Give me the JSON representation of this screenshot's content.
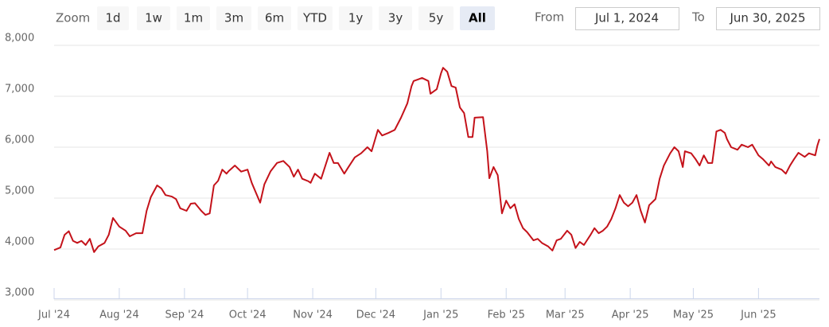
{
  "range_selector": {
    "zoom_label": "Zoom",
    "buttons": [
      "1d",
      "1w",
      "1m",
      "3m",
      "6m",
      "YTD",
      "1y",
      "3y",
      "5y",
      "All"
    ],
    "selected": "All",
    "from_label": "From",
    "from": "Jul 1, 2024",
    "to_label": "To",
    "to": "Jun 30, 2025"
  },
  "chart_data": {
    "type": "line",
    "grid": true,
    "x": [
      "2024-07-01",
      "2024-07-04",
      "2024-07-06",
      "2024-07-08",
      "2024-07-10",
      "2024-07-12",
      "2024-07-14",
      "2024-07-16",
      "2024-07-18",
      "2024-07-20",
      "2024-07-22",
      "2024-07-25",
      "2024-07-27",
      "2024-07-29",
      "2024-08-01",
      "2024-08-04",
      "2024-08-06",
      "2024-08-09",
      "2024-08-12",
      "2024-08-14",
      "2024-08-16",
      "2024-08-19",
      "2024-08-21",
      "2024-08-23",
      "2024-08-26",
      "2024-08-28",
      "2024-08-30",
      "2024-09-02",
      "2024-09-04",
      "2024-09-06",
      "2024-09-09",
      "2024-09-11",
      "2024-09-13",
      "2024-09-15",
      "2024-09-17",
      "2024-09-19",
      "2024-09-21",
      "2024-09-22",
      "2024-09-25",
      "2024-09-28",
      "2024-10-01",
      "2024-10-03",
      "2024-10-07",
      "2024-10-09",
      "2024-10-12",
      "2024-10-15",
      "2024-10-18",
      "2024-10-21",
      "2024-10-23",
      "2024-10-25",
      "2024-10-27",
      "2024-10-30",
      "2024-10-31",
      "2024-11-02",
      "2024-11-05",
      "2024-11-09",
      "2024-11-11",
      "2024-11-13",
      "2024-11-16",
      "2024-11-18",
      "2024-11-21",
      "2024-11-24",
      "2024-11-27",
      "2024-11-29",
      "2024-12-02",
      "2024-12-04",
      "2024-12-07",
      "2024-12-10",
      "2024-12-13",
      "2024-12-16",
      "2024-12-18",
      "2024-12-19",
      "2024-12-21",
      "2024-12-23",
      "2024-12-26",
      "2024-12-27",
      "2024-12-30",
      "2025-01-01",
      "2025-01-02",
      "2025-01-04",
      "2025-01-06",
      "2025-01-08",
      "2025-01-10",
      "2025-01-12",
      "2025-01-14",
      "2025-01-16",
      "2025-01-17",
      "2025-01-21",
      "2025-01-23",
      "2025-01-24",
      "2025-01-26",
      "2025-01-28",
      "2025-01-30",
      "2025-02-01",
      "2025-02-03",
      "2025-02-05",
      "2025-02-07",
      "2025-02-09",
      "2025-02-11",
      "2025-02-14",
      "2025-02-16",
      "2025-02-18",
      "2025-02-21",
      "2025-02-23",
      "2025-02-25",
      "2025-02-27",
      "2025-03-02",
      "2025-03-04",
      "2025-03-06",
      "2025-03-08",
      "2025-03-10",
      "2025-03-13",
      "2025-03-15",
      "2025-03-17",
      "2025-03-19",
      "2025-03-21",
      "2025-03-23",
      "2025-03-25",
      "2025-03-27",
      "2025-03-29",
      "2025-03-31",
      "2025-04-02",
      "2025-04-04",
      "2025-04-06",
      "2025-04-08",
      "2025-04-10",
      "2025-04-13",
      "2025-04-15",
      "2025-04-17",
      "2025-04-20",
      "2025-04-22",
      "2025-04-24",
      "2025-04-26",
      "2025-04-27",
      "2025-04-30",
      "2025-05-02",
      "2025-05-04",
      "2025-05-06",
      "2025-05-08",
      "2025-05-10",
      "2025-05-12",
      "2025-05-14",
      "2025-05-16",
      "2025-05-17",
      "2025-05-19",
      "2025-05-22",
      "2025-05-24",
      "2025-05-27",
      "2025-05-29",
      "2025-06-01",
      "2025-06-03",
      "2025-06-06",
      "2025-06-07",
      "2025-06-09",
      "2025-06-12",
      "2025-06-14",
      "2025-06-16",
      "2025-06-18",
      "2025-06-20",
      "2025-06-23",
      "2025-06-25",
      "2025-06-28",
      "2025-06-29",
      "2025-06-30"
    ],
    "series": [
      {
        "color": "#c4121a",
        "values": [
          3980,
          4030,
          4280,
          4350,
          4160,
          4120,
          4160,
          4080,
          4200,
          3940,
          4050,
          4120,
          4280,
          4610,
          4440,
          4360,
          4250,
          4310,
          4310,
          4750,
          5020,
          5250,
          5190,
          5060,
          5030,
          4980,
          4800,
          4750,
          4890,
          4900,
          4750,
          4670,
          4700,
          5250,
          5340,
          5560,
          5480,
          5530,
          5640,
          5520,
          5560,
          5300,
          4910,
          5270,
          5530,
          5690,
          5730,
          5610,
          5420,
          5560,
          5380,
          5330,
          5300,
          5480,
          5380,
          5890,
          5690,
          5690,
          5480,
          5610,
          5800,
          5880,
          6000,
          5920,
          6340,
          6230,
          6280,
          6340,
          6580,
          6860,
          7200,
          7300,
          7330,
          7360,
          7300,
          7050,
          7140,
          7450,
          7560,
          7480,
          7200,
          7170,
          6780,
          6670,
          6200,
          6200,
          6580,
          6590,
          5920,
          5390,
          5610,
          5450,
          4700,
          4950,
          4800,
          4880,
          4590,
          4410,
          4330,
          4170,
          4200,
          4120,
          4050,
          3970,
          4170,
          4200,
          4360,
          4280,
          4020,
          4140,
          4080,
          4270,
          4410,
          4310,
          4360,
          4440,
          4590,
          4800,
          5060,
          4910,
          4840,
          4910,
          5060,
          4750,
          4520,
          4860,
          4980,
          5380,
          5640,
          5880,
          6000,
          5920,
          5610,
          5920,
          5880,
          5770,
          5640,
          5840,
          5690,
          5690,
          6310,
          6340,
          6280,
          6160,
          6000,
          5950,
          6050,
          6000,
          6050,
          5840,
          5770,
          5640,
          5720,
          5610,
          5560,
          5480,
          5640,
          5770,
          5890,
          5810,
          5880,
          5840,
          6030,
          6160
        ]
      }
    ],
    "xlim": [
      "2024-07-01",
      "2025-06-30"
    ],
    "xticks": [
      {
        "value": "2024-07-01",
        "label": "Jul '24"
      },
      {
        "value": "2024-08-01",
        "label": "Aug '24"
      },
      {
        "value": "2024-09-01",
        "label": "Sep '24"
      },
      {
        "value": "2024-10-01",
        "label": "Oct '24"
      },
      {
        "value": "2024-11-01",
        "label": "Nov '24"
      },
      {
        "value": "2024-12-01",
        "label": "Dec '24"
      },
      {
        "value": "2025-01-01",
        "label": "Jan '25"
      },
      {
        "value": "2025-02-01",
        "label": "Feb '25"
      },
      {
        "value": "2025-03-01",
        "label": "Mar '25"
      },
      {
        "value": "2025-04-01",
        "label": "Apr '25"
      },
      {
        "value": "2025-05-01",
        "label": "May '25"
      },
      {
        "value": "2025-06-01",
        "label": "Jun '25"
      }
    ],
    "ylim": [
      3000,
      8000
    ],
    "yticks": [
      {
        "value": 3000,
        "label": "3,000"
      },
      {
        "value": 4000,
        "label": "4,000"
      },
      {
        "value": 5000,
        "label": "5,000"
      },
      {
        "value": 6000,
        "label": "6,000"
      },
      {
        "value": 7000,
        "label": "7,000"
      },
      {
        "value": 8000,
        "label": "8,000"
      }
    ]
  }
}
